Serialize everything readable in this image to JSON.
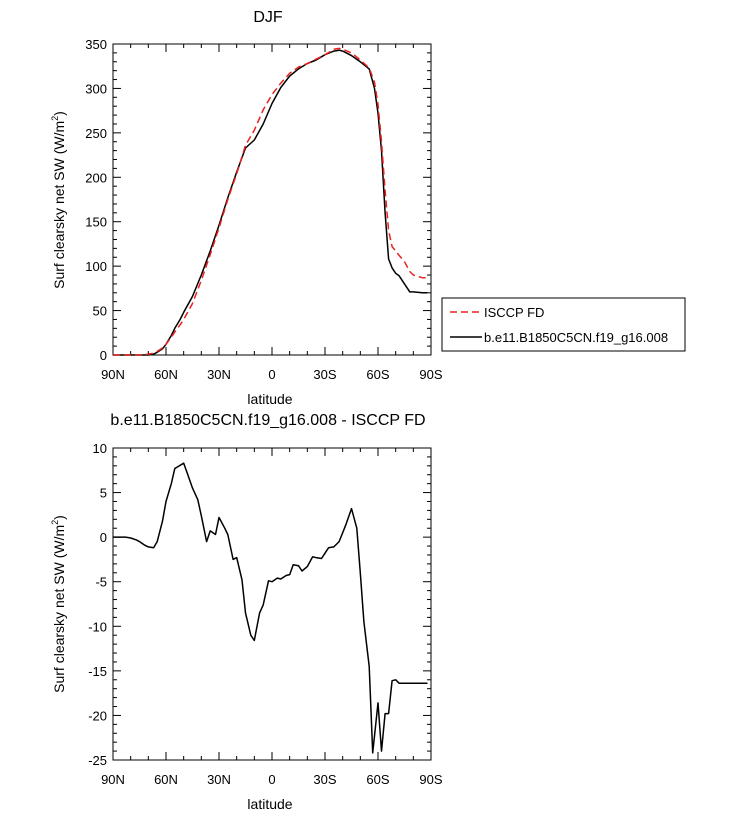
{
  "chart_data": [
    {
      "type": "line",
      "title": "DJF",
      "xlabel": "latitude",
      "ylabel_main": "Surf clearsky net SW (W/m",
      "ylabel_sup": "2",
      "ylabel_close": ")",
      "xlim": [
        90,
        -90
      ],
      "ylim": [
        0,
        350
      ],
      "x_ticks": [
        90,
        60,
        30,
        0,
        -30,
        -60,
        -90
      ],
      "x_tick_labels": [
        "90N",
        "60N",
        "30N",
        "0",
        "30S",
        "60S",
        "90S"
      ],
      "y_ticks": [
        0,
        50,
        100,
        150,
        200,
        250,
        300,
        350
      ],
      "y_tick_labels": [
        "0",
        "50",
        "100",
        "150",
        "200",
        "250",
        "300",
        "350"
      ],
      "legend": {
        "placement": "right"
      },
      "series": [
        {
          "name": "ISCCP FD",
          "color": "#e8221e",
          "dash": "dashed",
          "x": [
            90,
            80,
            75,
            70,
            67,
            65,
            62,
            60,
            57,
            55,
            52,
            50,
            45,
            40,
            35,
            30,
            25,
            20,
            15,
            10,
            5,
            0,
            -5,
            -10,
            -15,
            -20,
            -25,
            -30,
            -35,
            -38,
            -40,
            -45,
            -50,
            -55,
            -58,
            -60,
            -62,
            -64,
            -66,
            -68,
            -70,
            -72,
            -75,
            -78,
            -80,
            -85,
            -88
          ],
          "y": [
            0,
            0,
            0,
            1,
            2,
            4,
            8,
            12,
            20,
            26,
            34,
            40,
            58,
            84,
            113,
            143,
            175,
            204,
            236,
            253,
            276,
            293,
            306,
            317,
            324,
            328,
            333,
            338,
            344,
            345,
            344,
            340,
            332,
            323,
            307,
            282,
            240,
            185,
            140,
            122,
            117,
            112,
            105,
            94,
            90,
            87,
            87
          ]
        },
        {
          "name": "b.e11.B1850C5CN.f19_g16.008",
          "color": "#000000",
          "dash": "solid",
          "x": [
            90,
            80,
            75,
            70,
            67,
            65,
            62,
            60,
            57,
            55,
            52,
            50,
            45,
            40,
            35,
            30,
            25,
            20,
            15,
            10,
            5,
            0,
            -5,
            -10,
            -15,
            -20,
            -25,
            -30,
            -35,
            -38,
            -40,
            -45,
            -50,
            -55,
            -58,
            -60,
            -62,
            -64,
            -66,
            -68,
            -70,
            -72,
            -75,
            -78,
            -80,
            -85,
            -88
          ],
          "y": [
            0,
            0,
            0,
            0,
            1,
            3,
            7,
            12,
            22,
            30,
            40,
            48,
            66,
            90,
            117,
            146,
            177,
            206,
            233,
            242,
            260,
            283,
            301,
            314,
            322,
            328,
            332,
            338,
            342,
            343,
            342,
            337,
            330,
            322,
            300,
            272,
            230,
            160,
            108,
            98,
            92,
            89,
            80,
            71,
            71,
            70,
            70
          ]
        }
      ]
    },
    {
      "type": "line",
      "title": "b.e11.B1850C5CN.f19_g16.008 - ISCCP FD",
      "xlabel": "latitude",
      "ylabel_main": "Surf clearsky net SW (W/m",
      "ylabel_sup": "2",
      "ylabel_close": ")",
      "xlim": [
        90,
        -90
      ],
      "ylim": [
        -25,
        10
      ],
      "x_ticks": [
        90,
        60,
        30,
        0,
        -30,
        -60,
        -90
      ],
      "x_tick_labels": [
        "90N",
        "60N",
        "30N",
        "0",
        "30S",
        "60S",
        "90S"
      ],
      "y_ticks": [
        -25,
        -20,
        -15,
        -10,
        -5,
        0,
        5,
        10
      ],
      "y_tick_labels": [
        "-25",
        "-20",
        "-15",
        "-10",
        "-5",
        "0",
        "5",
        "10"
      ],
      "series": [
        {
          "color": "#000000",
          "dash": "solid",
          "x": [
            90,
            83,
            80,
            77,
            75,
            72,
            70,
            67,
            65,
            62,
            60,
            57,
            55,
            50,
            48,
            45,
            42,
            40,
            37,
            35,
            32,
            30,
            27,
            25,
            22,
            20,
            17,
            15,
            12,
            10,
            7,
            5,
            2,
            0,
            -3,
            -5,
            -8,
            -10,
            -12,
            -15,
            -17,
            -20,
            -23,
            -25,
            -28,
            -30,
            -32,
            -35,
            -38,
            -40,
            -42,
            -45,
            -48,
            -50,
            -52,
            -55,
            -57,
            -60,
            -62,
            -64,
            -66,
            -68,
            -70,
            -72,
            -74,
            -76,
            -78,
            -80,
            -82,
            -85,
            -88
          ],
          "y": [
            0,
            0,
            -0.1,
            -0.3,
            -0.5,
            -0.9,
            -1.1,
            -1.2,
            -0.5,
            1.8,
            4.0,
            6.0,
            7.7,
            8.3,
            7.2,
            5.5,
            4.2,
            2.4,
            -0.5,
            0.7,
            0.3,
            2.2,
            1.1,
            0.3,
            -2.5,
            -2.3,
            -4.8,
            -8.5,
            -11.0,
            -11.6,
            -8.5,
            -7.6,
            -4.9,
            -5.0,
            -4.6,
            -4.7,
            -4.3,
            -4.2,
            -3.1,
            -3.2,
            -3.8,
            -3.3,
            -2.2,
            -2.3,
            -2.4,
            -1.8,
            -1.2,
            -1.1,
            -0.5,
            0.5,
            1.5,
            3.2,
            1.0,
            -4.0,
            -9.5,
            -14.5,
            -24.2,
            -18.6,
            -24.0,
            -19.8,
            -19.8,
            -16.1,
            -16.0,
            -16.4,
            -16.4,
            -16.4,
            -16.4,
            -16.4,
            -16.4,
            -16.4,
            -16.4
          ]
        }
      ]
    }
  ]
}
